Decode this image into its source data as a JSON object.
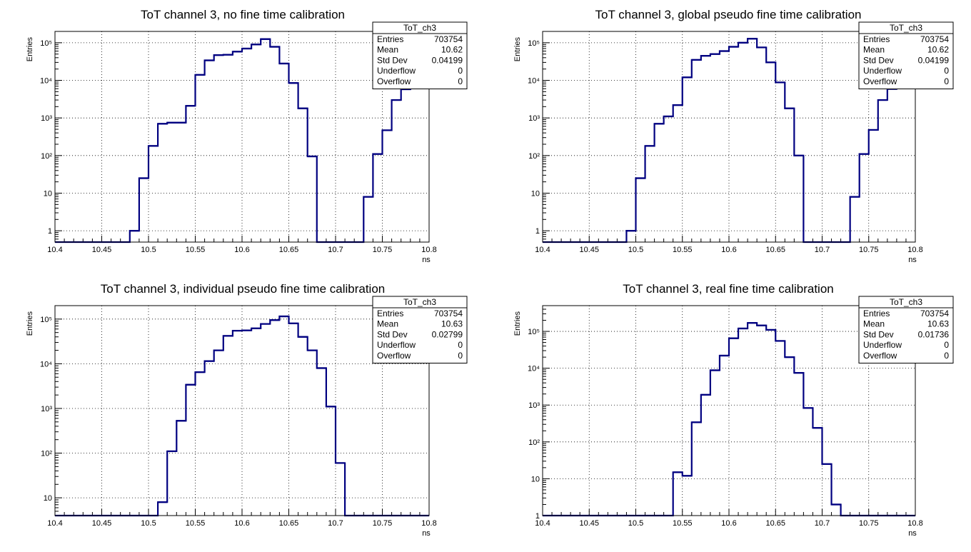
{
  "chart_data": [
    {
      "type": "histogram",
      "title": "ToT channel 3, no fine time calibration",
      "xlabel": "ns",
      "ylabel": "Entries",
      "xlim": [
        10.4,
        10.8
      ],
      "ylim": [
        0.5,
        200000
      ],
      "log_y": true,
      "grid": true,
      "x_ticks": [
        "10.4",
        "10.45",
        "10.5",
        "10.55",
        "10.6",
        "10.65",
        "10.7",
        "10.75",
        "10.8"
      ],
      "y_ticks": [
        {
          "value": 1,
          "label": "1"
        },
        {
          "value": 10,
          "label": "10"
        },
        {
          "value": 100,
          "label": "10²"
        },
        {
          "value": 1000,
          "label": "10³"
        },
        {
          "value": 10000,
          "label": "10⁴"
        },
        {
          "value": 100000,
          "label": "10⁵"
        }
      ],
      "bin_edges": [
        10.48,
        10.49,
        10.5,
        10.51,
        10.52,
        10.53,
        10.54,
        10.55,
        10.56,
        10.57,
        10.58,
        10.59,
        10.6,
        10.61,
        10.62,
        10.63,
        10.64,
        10.65,
        10.66,
        10.67,
        10.68,
        10.69,
        10.7,
        10.71,
        10.72,
        10.73,
        10.74,
        10.75,
        10.76,
        10.77,
        10.78,
        10.79,
        10.8
      ],
      "values": [
        1,
        25,
        180,
        700,
        750,
        750,
        2100,
        14000,
        34000,
        47000,
        48000,
        58000,
        70000,
        90000,
        125000,
        78000,
        28000,
        8500,
        1800,
        95,
        0,
        0,
        0,
        0,
        0,
        8,
        110,
        470,
        3000,
        5800,
        7500,
        8000
      ],
      "stats": {
        "name": "ToT_ch3",
        "rows": [
          {
            "label": "Entries",
            "value": "703754"
          },
          {
            "label": "Mean",
            "value": "10.62"
          },
          {
            "label": "Std Dev",
            "value": "0.04199"
          },
          {
            "label": "Underflow",
            "value": "0"
          },
          {
            "label": "Overflow",
            "value": "0"
          }
        ]
      }
    },
    {
      "type": "histogram",
      "title": "ToT channel 3, global pseudo fine time calibration",
      "xlabel": "ns",
      "ylabel": "Entries",
      "xlim": [
        10.4,
        10.8
      ],
      "ylim": [
        0.5,
        200000
      ],
      "log_y": true,
      "grid": true,
      "x_ticks": [
        "10.4",
        "10.45",
        "10.5",
        "10.55",
        "10.6",
        "10.65",
        "10.7",
        "10.75",
        "10.8"
      ],
      "y_ticks": [
        {
          "value": 1,
          "label": "1"
        },
        {
          "value": 10,
          "label": "10"
        },
        {
          "value": 100,
          "label": "10²"
        },
        {
          "value": 1000,
          "label": "10³"
        },
        {
          "value": 10000,
          "label": "10⁴"
        },
        {
          "value": 100000,
          "label": "10⁵"
        }
      ],
      "bin_edges": [
        10.49,
        10.5,
        10.51,
        10.52,
        10.53,
        10.54,
        10.55,
        10.56,
        10.57,
        10.58,
        10.59,
        10.6,
        10.61,
        10.62,
        10.63,
        10.64,
        10.65,
        10.66,
        10.67,
        10.68,
        10.69,
        10.7,
        10.71,
        10.72,
        10.73,
        10.74,
        10.75,
        10.76,
        10.77,
        10.78,
        10.79,
        10.8
      ],
      "values": [
        1,
        25,
        180,
        700,
        1100,
        2200,
        12000,
        35000,
        45000,
        50000,
        60000,
        78000,
        100000,
        128000,
        75000,
        30000,
        8800,
        1800,
        100,
        0,
        0,
        0,
        0,
        0,
        8,
        110,
        480,
        3000,
        5900,
        7600,
        8000
      ],
      "stats": {
        "name": "ToT_ch3",
        "rows": [
          {
            "label": "Entries",
            "value": "703754"
          },
          {
            "label": "Mean",
            "value": "10.62"
          },
          {
            "label": "Std Dev",
            "value": "0.04199"
          },
          {
            "label": "Underflow",
            "value": "0"
          },
          {
            "label": "Overflow",
            "value": "0"
          }
        ]
      }
    },
    {
      "type": "histogram",
      "title": "ToT channel 3, individual pseudo fine time calibration",
      "xlabel": "ns",
      "ylabel": "Entries",
      "xlim": [
        10.4,
        10.8
      ],
      "ylim": [
        4,
        200000
      ],
      "log_y": true,
      "grid": true,
      "x_ticks": [
        "10.4",
        "10.45",
        "10.5",
        "10.55",
        "10.6",
        "10.65",
        "10.7",
        "10.75",
        "10.8"
      ],
      "y_ticks": [
        {
          "value": 10,
          "label": "10"
        },
        {
          "value": 100,
          "label": "10²"
        },
        {
          "value": 1000,
          "label": "10³"
        },
        {
          "value": 10000,
          "label": "10⁴"
        },
        {
          "value": 100000,
          "label": "10⁵"
        }
      ],
      "bin_edges": [
        10.51,
        10.52,
        10.53,
        10.54,
        10.55,
        10.56,
        10.57,
        10.58,
        10.59,
        10.6,
        10.61,
        10.62,
        10.63,
        10.64,
        10.65,
        10.66,
        10.67,
        10.68,
        10.69,
        10.7,
        10.71
      ],
      "values": [
        8,
        110,
        530,
        3400,
        6500,
        11500,
        20000,
        42000,
        55000,
        56000,
        62000,
        78000,
        95000,
        115000,
        80000,
        40000,
        20000,
        8000,
        1100,
        60
      ],
      "stats": {
        "name": "ToT_ch3",
        "rows": [
          {
            "label": "Entries",
            "value": "703754"
          },
          {
            "label": "Mean",
            "value": "10.63"
          },
          {
            "label": "Std Dev",
            "value": "0.02799"
          },
          {
            "label": "Underflow",
            "value": "0"
          },
          {
            "label": "Overflow",
            "value": "0"
          }
        ]
      }
    },
    {
      "type": "histogram",
      "title": "ToT channel 3, real fine time calibration",
      "xlabel": "ns",
      "ylabel": "Entries",
      "xlim": [
        10.4,
        10.8
      ],
      "ylim": [
        1,
        500000
      ],
      "log_y": true,
      "grid": true,
      "x_ticks": [
        "10.4",
        "10.45",
        "10.5",
        "10.55",
        "10.6",
        "10.65",
        "10.7",
        "10.75",
        "10.8"
      ],
      "y_ticks": [
        {
          "value": 1,
          "label": "1"
        },
        {
          "value": 10,
          "label": "10"
        },
        {
          "value": 100,
          "label": "10²"
        },
        {
          "value": 1000,
          "label": "10³"
        },
        {
          "value": 10000,
          "label": "10⁴"
        },
        {
          "value": 100000,
          "label": "10⁵"
        }
      ],
      "bin_edges": [
        10.54,
        10.55,
        10.56,
        10.57,
        10.58,
        10.59,
        10.6,
        10.61,
        10.62,
        10.63,
        10.64,
        10.65,
        10.66,
        10.67,
        10.68,
        10.69,
        10.7,
        10.71,
        10.72
      ],
      "values": [
        15,
        12,
        340,
        1900,
        8800,
        22000,
        65000,
        120000,
        170000,
        145000,
        110000,
        55000,
        20000,
        7500,
        830,
        240,
        25,
        2
      ],
      "stats": {
        "name": "ToT_ch3",
        "rows": [
          {
            "label": "Entries",
            "value": "703754"
          },
          {
            "label": "Mean",
            "value": "10.63"
          },
          {
            "label": "Std Dev",
            "value": "0.01736"
          },
          {
            "label": "Underflow",
            "value": "0"
          },
          {
            "label": "Overflow",
            "value": "0"
          }
        ]
      }
    }
  ]
}
